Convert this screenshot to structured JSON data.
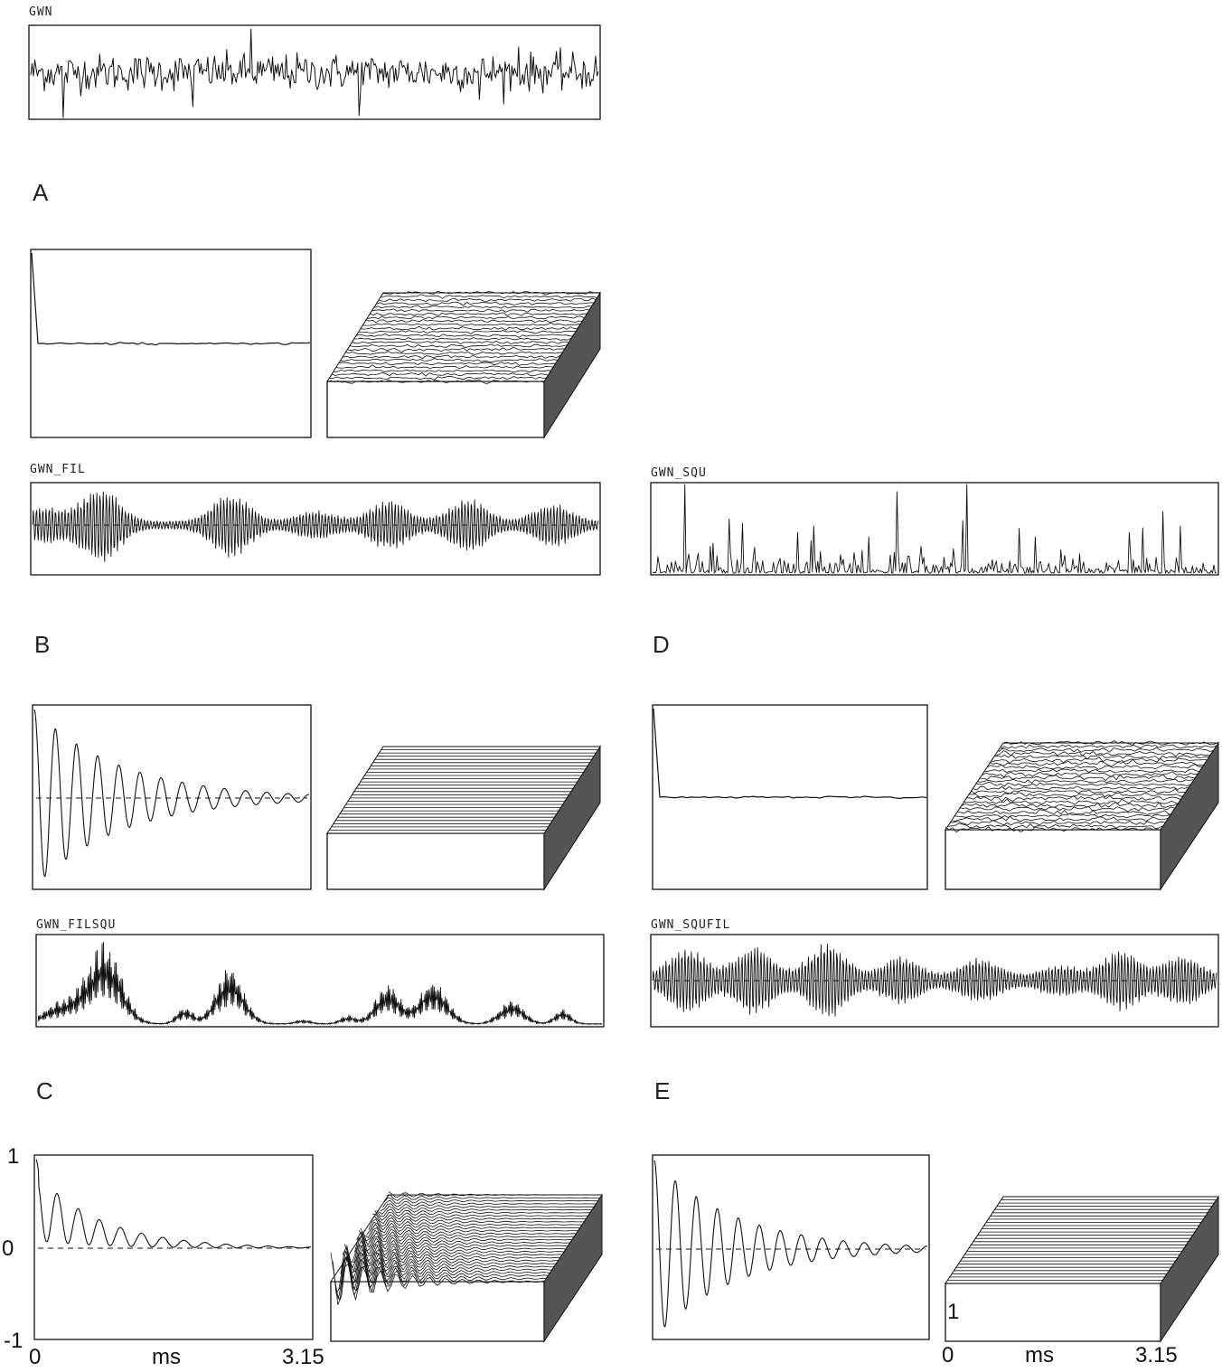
{
  "traces": {
    "gwn": "GWN",
    "gwn_fil": "GWN_FIL",
    "gwn_squ": "GWN_SQU",
    "gwn_filsqu": "GWN_FILSQU",
    "gwn_squfil": "GWN_SQUFIL"
  },
  "panels": {
    "a": "A",
    "b": "B",
    "c": "C",
    "d": "D",
    "e": "E"
  },
  "axes": {
    "c_y_max": "1",
    "c_y_zero": "0",
    "c_y_min": "-1",
    "c_x_start": "0",
    "c_x_unit": "ms",
    "c_x_end": "3.15",
    "e_surface_label": "1",
    "e_x_start": "0",
    "e_x_unit": "ms",
    "e_x_end": "3.15"
  },
  "colors": {
    "ink": "#111111",
    "side_shade": "#555555"
  }
}
